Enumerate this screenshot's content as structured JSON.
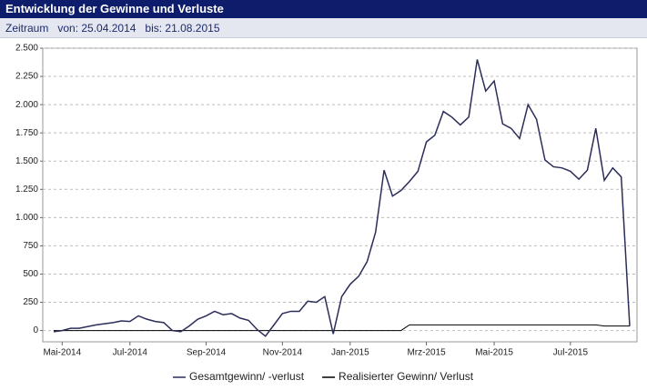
{
  "header": {
    "title": "Entwicklung der Gewinne und Verluste",
    "period_label": "Zeitraum",
    "from": "von: 25.04.2014",
    "to": "bis: 21.08.2015"
  },
  "chart_data": {
    "type": "line",
    "categories": [
      null,
      "Mai-2014",
      null,
      null,
      null,
      null,
      null,
      null,
      null,
      "Jul-2014",
      null,
      null,
      null,
      null,
      null,
      null,
      null,
      null,
      "Sep-2014",
      null,
      null,
      null,
      null,
      null,
      null,
      null,
      null,
      "Nov-2014",
      null,
      null,
      null,
      null,
      null,
      null,
      null,
      "Jan-2015",
      null,
      null,
      null,
      null,
      null,
      null,
      null,
      null,
      "Mrz-2015",
      null,
      null,
      null,
      null,
      null,
      null,
      null,
      "Mai-2015",
      null,
      null,
      null,
      null,
      null,
      null,
      null,
      null,
      "Jul-2015",
      null,
      null,
      null,
      null,
      null,
      null,
      null
    ],
    "series": [
      {
        "name": "Gesamtgewinn/ -verlust",
        "color": "#2b2d5a",
        "values": [
          -10,
          0,
          20,
          20,
          35,
          50,
          60,
          70,
          85,
          80,
          130,
          100,
          80,
          70,
          0,
          -10,
          40,
          100,
          130,
          170,
          140,
          150,
          110,
          90,
          10,
          -50,
          50,
          150,
          170,
          170,
          260,
          250,
          300,
          -30,
          300,
          410,
          480,
          610,
          870,
          1420,
          1190,
          1240,
          1320,
          1410,
          1670,
          1730,
          1940,
          1890,
          1820,
          1890,
          2400,
          2120,
          2210,
          1830,
          1790,
          1700,
          2000,
          1870,
          1510,
          1450,
          1440,
          1410,
          1340,
          1420,
          1790,
          1330,
          1440,
          1360,
          40
        ]
      },
      {
        "name": "Realisierter Gewinn/ Verlust",
        "color": "#000000",
        "values": [
          0,
          0,
          0,
          0,
          0,
          0,
          0,
          0,
          0,
          0,
          0,
          0,
          0,
          0,
          0,
          0,
          0,
          0,
          0,
          0,
          0,
          0,
          0,
          0,
          0,
          0,
          0,
          0,
          0,
          0,
          0,
          0,
          0,
          0,
          0,
          0,
          0,
          0,
          0,
          0,
          0,
          0,
          50,
          50,
          50,
          50,
          50,
          50,
          50,
          50,
          50,
          50,
          50,
          50,
          50,
          50,
          50,
          50,
          50,
          50,
          50,
          50,
          50,
          50,
          50,
          40,
          40,
          40,
          40
        ]
      }
    ],
    "ylim": [
      -100,
      2500
    ],
    "yticks": [
      0,
      250,
      500,
      750,
      {
        "value": 1000,
        "label": "1.000"
      },
      {
        "value": 1250,
        "label": "1.250"
      },
      {
        "value": 1500,
        "label": "1.500"
      },
      {
        "value": 1750,
        "label": "1.750"
      },
      {
        "value": 2000,
        "label": "2.000"
      },
      {
        "value": 2250,
        "label": "2.250"
      },
      {
        "value": 2500,
        "label": "2.500"
      }
    ],
    "grid": true
  }
}
